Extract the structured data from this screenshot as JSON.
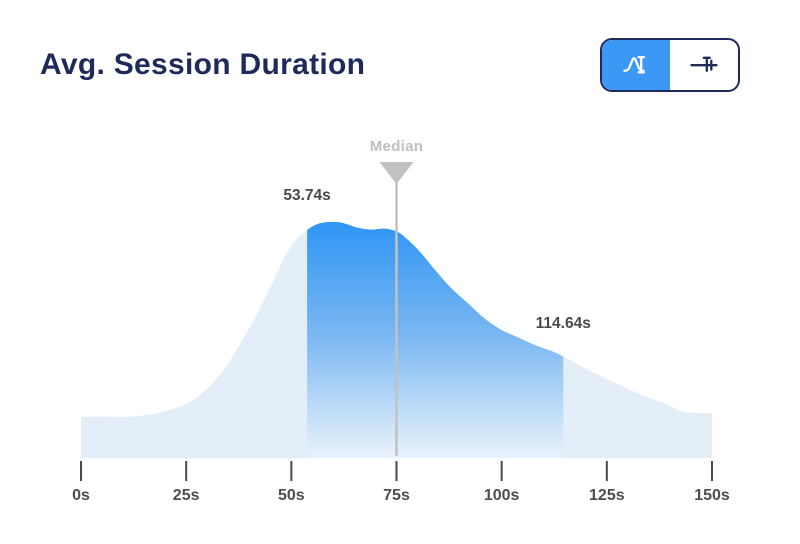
{
  "header": {
    "title": "Avg. Session Duration",
    "view_toggle": {
      "options": [
        {
          "id": "distribution-view",
          "icon": "distribution-curve-icon",
          "active": true
        },
        {
          "id": "range-slider-view",
          "icon": "range-slider-icon",
          "active": false
        }
      ],
      "active_color": "#3B98F4",
      "border_color": "#1E2A5A"
    }
  },
  "chart_data": {
    "type": "area",
    "title": "Avg. Session Duration",
    "xlabel": "",
    "ylabel": "",
    "x_unit": "s",
    "xlim": [
      0,
      150
    ],
    "ylim": [
      0,
      1
    ],
    "grid": false,
    "legend": false,
    "x_ticks": [
      0,
      25,
      50,
      75,
      100,
      125,
      150
    ],
    "tick_labels": [
      "0s",
      "25s",
      "50s",
      "75s",
      "100s",
      "125s",
      "150s"
    ],
    "median": {
      "label": "Median",
      "value": 75
    },
    "selected_range": {
      "start": 53.74,
      "end": 114.64,
      "start_label": "53.74s",
      "end_label": "114.64s"
    },
    "points": [
      [
        0,
        0.175
      ],
      [
        6,
        0.175
      ],
      [
        12,
        0.176
      ],
      [
        18,
        0.19
      ],
      [
        23,
        0.215
      ],
      [
        27,
        0.25
      ],
      [
        31,
        0.31
      ],
      [
        35,
        0.4
      ],
      [
        39,
        0.52
      ],
      [
        43,
        0.65
      ],
      [
        47,
        0.8
      ],
      [
        50,
        0.9
      ],
      [
        53,
        0.955
      ],
      [
        56,
        0.99
      ],
      [
        59,
        1.0
      ],
      [
        62,
        0.997
      ],
      [
        66,
        0.975
      ],
      [
        69,
        0.968
      ],
      [
        72,
        0.972
      ],
      [
        74,
        0.966
      ],
      [
        76,
        0.95
      ],
      [
        80,
        0.885
      ],
      [
        84,
        0.8
      ],
      [
        88,
        0.72
      ],
      [
        92,
        0.655
      ],
      [
        96,
        0.59
      ],
      [
        100,
        0.542
      ],
      [
        104,
        0.51
      ],
      [
        108,
        0.478
      ],
      [
        112,
        0.452
      ],
      [
        116,
        0.418
      ],
      [
        120,
        0.378
      ],
      [
        125,
        0.335
      ],
      [
        130,
        0.293
      ],
      [
        134,
        0.262
      ],
      [
        138,
        0.237
      ],
      [
        141,
        0.212
      ],
      [
        143,
        0.196
      ],
      [
        146,
        0.191
      ],
      [
        150,
        0.19
      ]
    ],
    "colors": {
      "selected_fill_top": "#2F95F4",
      "selected_fill_mid": "#7AB7F2",
      "selected_fill_bottom": "#EAF3FC",
      "base_fill": "#E4EEF8",
      "median_marker": "#C2C2C2",
      "median_label_text": "#BFBFBF",
      "range_label_text": "#4A4A4A",
      "tick_text": "#4D4D4D",
      "tick_mark": "#4A4A4A",
      "title_text": "#1E2A5A"
    }
  }
}
